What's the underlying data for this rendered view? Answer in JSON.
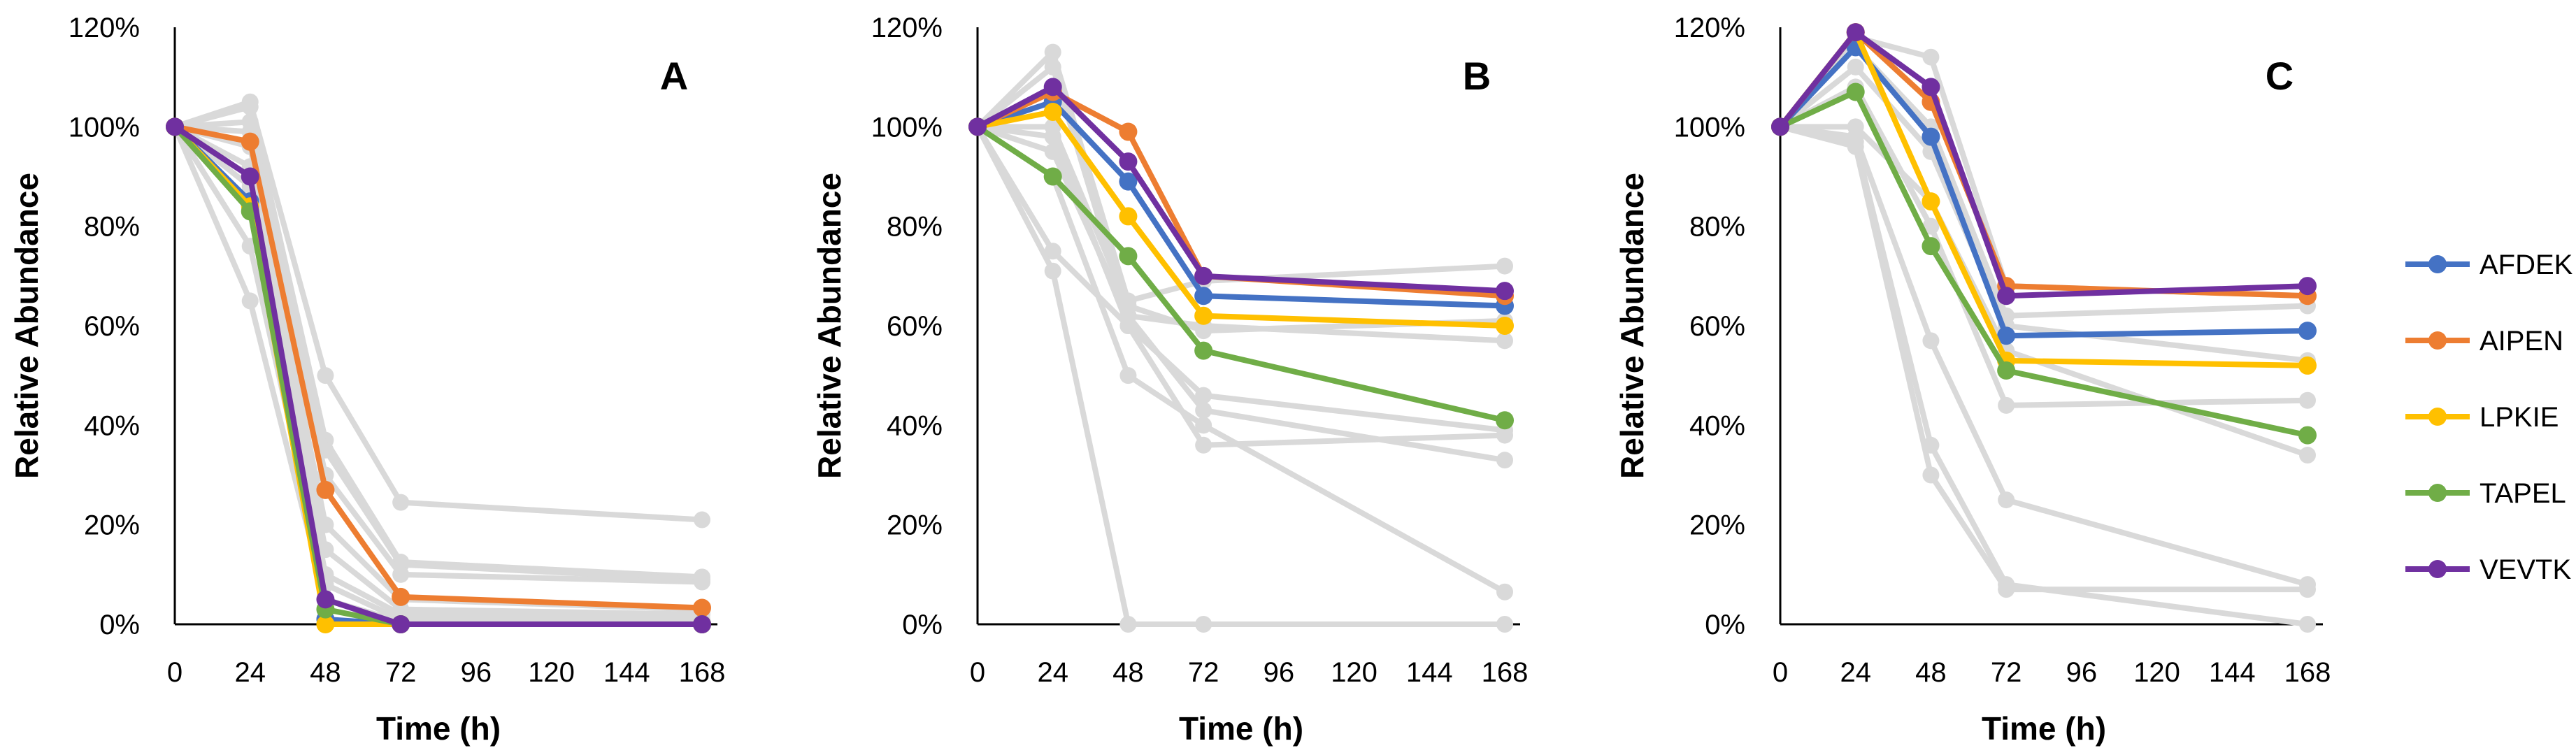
{
  "chart_data": [
    {
      "type": "line",
      "panel_label": "A",
      "xlabel": "Time (h)",
      "xlabel_color": "#595959",
      "ylabel": "Relative Abundance",
      "x": [
        0,
        24,
        48,
        72,
        168
      ],
      "xticks": [
        0,
        24,
        48,
        72,
        96,
        120,
        144,
        168
      ],
      "xtick_labels": [
        "0",
        "24",
        "48",
        "72",
        "96",
        "120",
        "144",
        "168"
      ],
      "xlim": [
        0,
        168
      ],
      "ylim": [
        0,
        120
      ],
      "yticks": [
        0,
        20,
        40,
        60,
        80,
        100,
        120
      ],
      "ytick_labels": [
        "0%",
        "20%",
        "40%",
        "60%",
        "80%",
        "100%",
        "120%"
      ],
      "background_series": [
        [
          100,
          105,
          50,
          24.5,
          21
        ],
        [
          100,
          104,
          37,
          12.5,
          9.5
        ],
        [
          100,
          101,
          35,
          12,
          9
        ],
        [
          100,
          99,
          30,
          10,
          8.5
        ],
        [
          100,
          96,
          20,
          5,
          3
        ],
        [
          100,
          92,
          15,
          3,
          2
        ],
        [
          100,
          88,
          10,
          2,
          1
        ],
        [
          100,
          76,
          8,
          1,
          0.5
        ],
        [
          100,
          65,
          5,
          0.5,
          0
        ]
      ],
      "series": [
        {
          "name": "AFDEK",
          "values": [
            100,
            85,
            1,
            0,
            0
          ]
        },
        {
          "name": "AIPEN",
          "values": [
            100,
            97,
            27,
            5.5,
            3.3
          ]
        },
        {
          "name": "LPKIE",
          "values": [
            100,
            84,
            0,
            0,
            0
          ]
        },
        {
          "name": "TAPEL",
          "values": [
            100,
            83,
            3,
            0,
            0
          ]
        },
        {
          "name": "VEVTK",
          "values": [
            100,
            90,
            5,
            0,
            0
          ]
        }
      ]
    },
    {
      "type": "line",
      "panel_label": "B",
      "xlabel": "Time (h)",
      "xlabel_color": "#000000",
      "ylabel": "Relative Abundance",
      "x": [
        0,
        24,
        48,
        72,
        168
      ],
      "xticks": [
        0,
        24,
        48,
        72,
        96,
        120,
        144,
        168
      ],
      "xtick_labels": [
        "0",
        "24",
        "48",
        "72",
        "96",
        "120",
        "144",
        "168"
      ],
      "xlim": [
        0,
        168
      ],
      "ylim": [
        0,
        120
      ],
      "yticks": [
        0,
        20,
        40,
        60,
        80,
        100,
        120
      ],
      "ytick_labels": [
        "0%",
        "20%",
        "40%",
        "60%",
        "80%",
        "100%",
        "120%"
      ],
      "background_series": [
        [
          100,
          115,
          65,
          69,
          72
        ],
        [
          100,
          112,
          62,
          60,
          57
        ],
        [
          100,
          98,
          60,
          46,
          39
        ],
        [
          100,
          95,
          62,
          43,
          33
        ],
        [
          100,
          90,
          50,
          40,
          6.5
        ],
        [
          100,
          75,
          60,
          36,
          38
        ],
        [
          100,
          71,
          0,
          0,
          0
        ],
        [
          100,
          100,
          64,
          59,
          61
        ]
      ],
      "series": [
        {
          "name": "AFDEK",
          "values": [
            100,
            105,
            89,
            66,
            64
          ]
        },
        {
          "name": "AIPEN",
          "values": [
            100,
            107,
            99,
            70,
            66
          ]
        },
        {
          "name": "LPKIE",
          "values": [
            100,
            103,
            82,
            62,
            60
          ]
        },
        {
          "name": "TAPEL",
          "values": [
            100,
            90,
            74,
            55,
            41
          ]
        },
        {
          "name": "VEVTK",
          "values": [
            100,
            108,
            93,
            70,
            67
          ]
        }
      ]
    },
    {
      "type": "line",
      "panel_label": "C",
      "xlabel": "Time (h)",
      "xlabel_color": "#000000",
      "ylabel": "Relative Abundance",
      "x": [
        0,
        24,
        48,
        72,
        168
      ],
      "xticks": [
        0,
        24,
        48,
        72,
        96,
        120,
        144,
        168
      ],
      "xtick_labels": [
        "0",
        "24",
        "48",
        "72",
        "96",
        "120",
        "144",
        "168"
      ],
      "xlim": [
        0,
        168
      ],
      "ylim": [
        0,
        120
      ],
      "yticks": [
        0,
        20,
        40,
        60,
        80,
        100,
        120
      ],
      "ytick_labels": [
        "0%",
        "20%",
        "40%",
        "60%",
        "80%",
        "100%",
        "120%"
      ],
      "background_series": [
        [
          100,
          118,
          114,
          68,
          66
        ],
        [
          100,
          116,
          100,
          62,
          64
        ],
        [
          100,
          112,
          95,
          60,
          53
        ],
        [
          100,
          108,
          80,
          44,
          45
        ],
        [
          100,
          98,
          57,
          25,
          8
        ],
        [
          100,
          97,
          36,
          8,
          0
        ],
        [
          100,
          96,
          30,
          7,
          7
        ],
        [
          100,
          100,
          85,
          55,
          34
        ]
      ],
      "series": [
        {
          "name": "AFDEK",
          "values": [
            100,
            116,
            98,
            58,
            59
          ]
        },
        {
          "name": "AIPEN",
          "values": [
            100,
            119,
            105,
            68,
            66
          ]
        },
        {
          "name": "LPKIE",
          "values": [
            100,
            119,
            85,
            53,
            52
          ]
        },
        {
          "name": "TAPEL",
          "values": [
            100,
            107,
            76,
            51,
            38
          ]
        },
        {
          "name": "VEVTK",
          "values": [
            100,
            119,
            108,
            66,
            68
          ]
        }
      ]
    }
  ],
  "legend": {
    "position": "right",
    "items": [
      {
        "name": "AFDEK",
        "color": "#4472C4"
      },
      {
        "name": "AIPEN",
        "color": "#ED7D31"
      },
      {
        "name": "LPKIE",
        "color": "#FFC000"
      },
      {
        "name": "TAPEL",
        "color": "#70AD47"
      },
      {
        "name": "VEVTK",
        "color": "#7030A0"
      }
    ]
  },
  "colors": {
    "background_line": "#D9D9D9",
    "AFDEK": "#4472C4",
    "AIPEN": "#ED7D31",
    "LPKIE": "#FFC000",
    "TAPEL": "#70AD47",
    "VEVTK": "#7030A0"
  }
}
